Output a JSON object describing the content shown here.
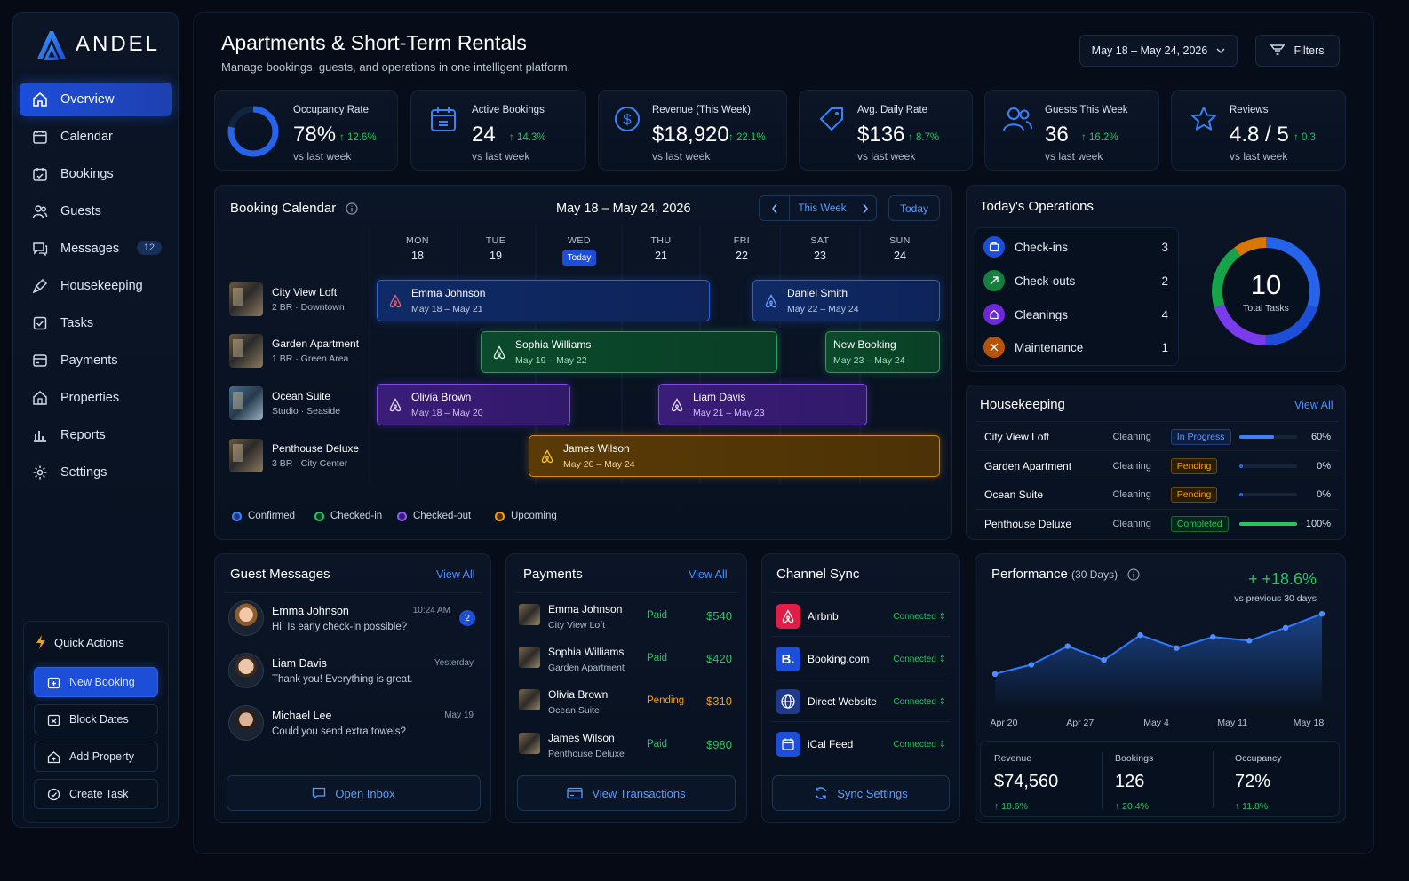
{
  "brand": {
    "name": "ANDEL"
  },
  "nav": [
    {
      "label": "Overview",
      "icon": "home-icon",
      "active": true
    },
    {
      "label": "Calendar",
      "icon": "calendar-icon"
    },
    {
      "label": "Bookings",
      "icon": "bookings-icon"
    },
    {
      "label": "Guests",
      "icon": "guests-icon"
    },
    {
      "label": "Messages",
      "icon": "messages-icon",
      "badge": "12"
    },
    {
      "label": "Housekeeping",
      "icon": "housekeeping-icon"
    },
    {
      "label": "Tasks",
      "icon": "tasks-icon"
    },
    {
      "label": "Payments",
      "icon": "payments-icon"
    },
    {
      "label": "Properties",
      "icon": "properties-icon"
    },
    {
      "label": "Reports",
      "icon": "reports-icon"
    },
    {
      "label": "Settings",
      "icon": "settings-icon"
    }
  ],
  "quick_actions": {
    "title": "Quick Actions",
    "buttons": [
      "New Booking",
      "Block Dates",
      "Add Property",
      "Create Task"
    ]
  },
  "header": {
    "title": "Apartments & Short-Term Rentals",
    "subtitle": "Manage bookings, guests, and operations in one intelligent platform.",
    "date_range": "May 18 – May 24, 2026",
    "filters_label": "Filters"
  },
  "stats": [
    {
      "label": "Occupancy Rate",
      "value": "78%",
      "change": "↑ 12.6%",
      "vs": "vs last week",
      "icon": "occupancy-ring-icon",
      "ring_fraction": 0.78
    },
    {
      "label": "Active Bookings",
      "value": "24",
      "change": "↑ 14.3%",
      "vs": "vs last week",
      "icon": "calendar-icon"
    },
    {
      "label": "Revenue (This Week)",
      "value": "$18,920",
      "change": "↑ 22.1%",
      "vs": "vs last week",
      "icon": "dollar-icon"
    },
    {
      "label": "Avg. Daily Rate",
      "value": "$136",
      "change": "↑ 8.7%",
      "vs": "vs last week",
      "icon": "tag-icon"
    },
    {
      "label": "Guests This Week",
      "value": "36",
      "change": "↑ 16.2%",
      "vs": "vs last week",
      "icon": "guests-icon"
    },
    {
      "label": "Reviews",
      "value": "4.8 / 5",
      "change": "↑ 0.3",
      "vs": "vs last week",
      "icon": "star-icon"
    }
  ],
  "calendar": {
    "title": "Booking Calendar",
    "range": "May 18 – May 24, 2026",
    "this_week": "This Week",
    "today": "Today",
    "today_badge": "Today",
    "days": [
      {
        "name": "MON",
        "date": "18"
      },
      {
        "name": "TUE",
        "date": "19"
      },
      {
        "name": "WED",
        "date": "20",
        "today": true
      },
      {
        "name": "THU",
        "date": "21"
      },
      {
        "name": "FRI",
        "date": "22"
      },
      {
        "name": "SAT",
        "date": "23"
      },
      {
        "name": "SUN",
        "date": "24"
      }
    ],
    "properties": [
      {
        "name": "City View Loft",
        "meta": "2 BR · Downtown"
      },
      {
        "name": "Garden Apartment",
        "meta": "1 BR · Green Area"
      },
      {
        "name": "Ocean Suite",
        "meta": "Studio · Seaside"
      },
      {
        "name": "Penthouse Deluxe",
        "meta": "3 BR · City Center"
      }
    ],
    "bookings": [
      {
        "guest": "Emma Johnson",
        "dates": "May 18 – May 21",
        "status": "blue"
      },
      {
        "guest": "Daniel Smith",
        "dates": "May 22 – May 24",
        "status": "blue"
      },
      {
        "guest": "Sophia Williams",
        "dates": "May 19 – May 22",
        "status": "green"
      },
      {
        "guest": "New Booking",
        "dates": "May 23 – May 24",
        "status": "green"
      },
      {
        "guest": "Olivia Brown",
        "dates": "May 18 – May 20",
        "status": "purple"
      },
      {
        "guest": "Liam Davis",
        "dates": "May 21 – May 23",
        "status": "purple"
      },
      {
        "guest": "James Wilson",
        "dates": "May 20 – May 24",
        "status": "orange"
      }
    ],
    "legend": [
      {
        "label": "Confirmed",
        "color": "#3b82f6"
      },
      {
        "label": "Checked-in",
        "color": "#22c55e"
      },
      {
        "label": "Checked-out",
        "color": "#8b5cf6"
      },
      {
        "label": "Upcoming",
        "color": "#f59e0b"
      }
    ]
  },
  "operations": {
    "title": "Today's Operations",
    "items": [
      {
        "label": "Check-ins",
        "count": "3",
        "color": "#2563eb",
        "icon": "checkin-icon"
      },
      {
        "label": "Check-outs",
        "count": "2",
        "color": "#16a34a",
        "icon": "checkout-icon"
      },
      {
        "label": "Cleanings",
        "count": "4",
        "color": "#7c3aed",
        "icon": "cleaning-icon"
      },
      {
        "label": "Maintenance",
        "count": "1",
        "color": "#d97706",
        "icon": "wrench-icon"
      }
    ],
    "total": "10",
    "total_label": "Total Tasks"
  },
  "housekeeping": {
    "title": "Housekeeping",
    "view_all": "View All",
    "rows": [
      {
        "name": "City View Loft",
        "task": "Cleaning",
        "status": "In Progress",
        "progress": 0.6,
        "pct": "60%",
        "color": "#3b82f6"
      },
      {
        "name": "Garden Apartment",
        "task": "Cleaning",
        "status": "Pending",
        "progress": 0.0,
        "pct": "0%",
        "color": "#f59e0b"
      },
      {
        "name": "Ocean Suite",
        "task": "Cleaning",
        "status": "Pending",
        "progress": 0.0,
        "pct": "0%",
        "color": "#f59e0b"
      },
      {
        "name": "Penthouse Deluxe",
        "task": "Cleaning",
        "status": "Completed",
        "progress": 1.0,
        "pct": "100%",
        "color": "#22c55e"
      }
    ]
  },
  "messages": {
    "title": "Guest Messages",
    "view_all": "View All",
    "items": [
      {
        "name": "Emma Johnson",
        "text": "Hi! Is early check-in possible?",
        "time": "10:24 AM",
        "unread": "2"
      },
      {
        "name": "Liam Davis",
        "text": "Thank you! Everything is great.",
        "time": "Yesterday"
      },
      {
        "name": "Michael Lee",
        "text": "Could you send extra towels?",
        "time": "May 19"
      }
    ],
    "button": "Open Inbox"
  },
  "payments": {
    "title": "Payments",
    "view_all": "View All",
    "items": [
      {
        "name": "Emma Johnson",
        "property": "City View Loft",
        "status": "Paid",
        "amount": "$540"
      },
      {
        "name": "Sophia Williams",
        "property": "Garden Apartment",
        "status": "Paid",
        "amount": "$420"
      },
      {
        "name": "Olivia Brown",
        "property": "Ocean Suite",
        "status": "Pending",
        "amount": "$310"
      },
      {
        "name": "James Wilson",
        "property": "Penthouse Deluxe",
        "status": "Paid",
        "amount": "$980"
      }
    ],
    "button": "View Transactions"
  },
  "channels": {
    "title": "Channel Sync",
    "items": [
      {
        "name": "Airbnb",
        "status": "Connected",
        "color": "#e11d48",
        "icon": "airbnb-icon"
      },
      {
        "name": "Booking.com",
        "status": "Connected",
        "color": "#1d4ed8",
        "icon": "booking-icon",
        "glyph": "B."
      },
      {
        "name": "Direct Website",
        "status": "Connected",
        "color": "#1e40af",
        "icon": "globe-icon"
      },
      {
        "name": "iCal Feed",
        "status": "Connected",
        "color": "#1d4ed8",
        "icon": "ical-icon"
      }
    ],
    "button": "Sync Settings"
  },
  "performance": {
    "title": "Performance",
    "period": "(30 Days)",
    "change": "+ +18.6%",
    "change_sub": "vs previous 30 days",
    "kpis": [
      {
        "label": "Revenue",
        "value": "$74,560",
        "change": "↑ 18.6%"
      },
      {
        "label": "Bookings",
        "value": "126",
        "change": "↑ 20.4%"
      },
      {
        "label": "Occupancy",
        "value": "72%",
        "change": "↑ 11.8%"
      }
    ]
  },
  "chart_data": {
    "type": "line",
    "x_ticks": [
      "Apr 20",
      "Apr 27",
      "May 4",
      "May 11",
      "May 18"
    ],
    "series": [
      {
        "values": [
          30,
          40,
          60,
          45,
          72,
          58,
          70,
          66,
          80,
          95
        ]
      }
    ],
    "ylim": [
      0,
      100
    ],
    "grid": false,
    "color": "#2f7bff"
  }
}
